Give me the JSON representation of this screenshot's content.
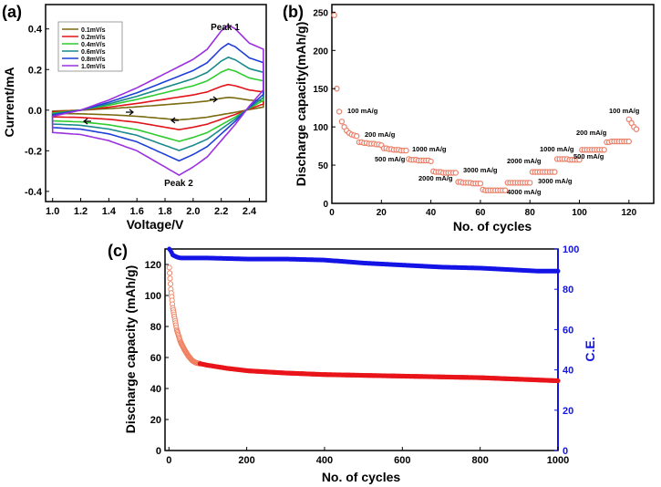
{
  "chart_data": [
    {
      "panel": "(a)",
      "type": "line",
      "title": "",
      "xlabel": "Voltage/V",
      "ylabel": "Current/mA",
      "xlim": [
        0.95,
        2.52
      ],
      "ylim": [
        -0.45,
        0.52
      ],
      "xticks": [
        "1.0",
        "1.2",
        "1.4",
        "1.6",
        "1.8",
        "2.0",
        "2.2",
        "2.4"
      ],
      "yticks": [
        "-0.4",
        "-0.2",
        "0.0",
        "0.2",
        "0.4"
      ],
      "legend_position": "top-left",
      "annotations": [
        "Peak 1",
        "Peak 2"
      ],
      "series": [
        {
          "name": "0.1mV/s",
          "color": "#7a6a10",
          "scale": 0.15
        },
        {
          "name": "0.2mV/s",
          "color": "#e0141a",
          "scale": 0.3
        },
        {
          "name": "0.4mV/s",
          "color": "#2ecc2e",
          "scale": 0.48
        },
        {
          "name": "0.6mV/s",
          "color": "#1a8a8a",
          "scale": 0.62
        },
        {
          "name": "0.8mV/s",
          "color": "#1e3fd8",
          "scale": 0.78
        },
        {
          "name": "1.0mV/s",
          "color": "#9b30e0",
          "scale": 1.0
        }
      ],
      "shape": {
        "anodic": [
          [
            1.0,
            -0.03
          ],
          [
            1.2,
            0.0
          ],
          [
            1.4,
            0.05
          ],
          [
            1.6,
            0.11
          ],
          [
            1.8,
            0.18
          ],
          [
            2.0,
            0.25
          ],
          [
            2.1,
            0.3
          ],
          [
            2.2,
            0.39
          ],
          [
            2.25,
            0.42
          ],
          [
            2.3,
            0.4
          ],
          [
            2.4,
            0.33
          ],
          [
            2.5,
            0.3
          ]
        ],
        "cathodic": [
          [
            2.5,
            0.1
          ],
          [
            2.4,
            0.02
          ],
          [
            2.3,
            -0.07
          ],
          [
            2.2,
            -0.15
          ],
          [
            2.1,
            -0.23
          ],
          [
            2.0,
            -0.28
          ],
          [
            1.9,
            -0.32
          ],
          [
            1.8,
            -0.28
          ],
          [
            1.6,
            -0.2
          ],
          [
            1.4,
            -0.15
          ],
          [
            1.2,
            -0.12
          ],
          [
            1.0,
            -0.11
          ]
        ]
      }
    },
    {
      "panel": "(b)",
      "type": "scatter",
      "title": "",
      "xlabel": "No. of cycles",
      "ylabel": "Discharge capacity(mAh/g)",
      "xlim": [
        0,
        130
      ],
      "ylim": [
        0,
        260
      ],
      "xticks": [
        "0",
        "20",
        "40",
        "60",
        "80",
        "100",
        "120"
      ],
      "yticks": [
        "0",
        "50",
        "100",
        "150",
        "200",
        "250"
      ],
      "marker_color": "#e9806a",
      "segments": [
        {
          "label": "100 mA/g",
          "start": 1,
          "values": [
            246,
            150,
            120,
            107,
            100,
            95,
            92,
            90,
            89,
            88
          ]
        },
        {
          "label": "200 mA/g",
          "start": 11,
          "values": [
            80,
            80,
            79,
            79,
            78,
            78,
            78,
            77,
            77,
            76
          ]
        },
        {
          "label": "500 mA/g",
          "start": 21,
          "values": [
            72,
            72,
            71,
            71,
            70,
            70,
            70,
            69,
            69,
            69
          ]
        },
        {
          "label": "1000 mA/g",
          "start": 31,
          "values": [
            58,
            57,
            57,
            57,
            56,
            56,
            56,
            56,
            56,
            55
          ]
        },
        {
          "label": "2000 mA/g",
          "start": 41,
          "values": [
            42,
            41,
            41,
            41,
            40,
            40,
            40,
            40,
            40,
            40
          ]
        },
        {
          "label": "3000 mA/g",
          "start": 51,
          "values": [
            28,
            28,
            27,
            27,
            27,
            27,
            26,
            26,
            26,
            26
          ]
        },
        {
          "label": "4000 mA/g",
          "start": 61,
          "values": [
            18,
            17,
            17,
            17,
            17,
            17,
            17,
            17,
            17,
            17
          ]
        },
        {
          "label": "3000 mA/g",
          "start": 71,
          "values": [
            27,
            27,
            27,
            27,
            27,
            27,
            27,
            27,
            27,
            27
          ]
        },
        {
          "label": "2000 mA/g",
          "start": 81,
          "values": [
            41,
            41,
            41,
            41,
            41,
            41,
            41,
            41,
            41,
            41
          ]
        },
        {
          "label": "1000 mA/g",
          "start": 91,
          "values": [
            58,
            58,
            58,
            58,
            58,
            57,
            57,
            57,
            57,
            57
          ]
        },
        {
          "label": "500 mA/g",
          "start": 101,
          "values": [
            70,
            70,
            70,
            70,
            70,
            70,
            70,
            70,
            70,
            70
          ]
        },
        {
          "label": "200 mA/g",
          "start": 111,
          "values": [
            80,
            80,
            81,
            81,
            81,
            81,
            81,
            81,
            81,
            81
          ]
        },
        {
          "label": "100 mA/g",
          "start": 120,
          "values": [
            110,
            105,
            100,
            97
          ]
        }
      ]
    },
    {
      "panel": "(c)",
      "type": "scatter",
      "title": "",
      "xlabel": "No. of cycles",
      "ylabel": "Discharge capacity (mAh/g)",
      "y2label": "C.E.",
      "xlim": [
        -10,
        1000
      ],
      "ylim": [
        0,
        130
      ],
      "y2lim": [
        0,
        100
      ],
      "xticks": [
        "0",
        "200",
        "400",
        "600",
        "800",
        "1000"
      ],
      "yticks": [
        "0",
        "20",
        "40",
        "60",
        "80",
        "100",
        "120"
      ],
      "y2ticks": [
        "0",
        "20",
        "40",
        "60",
        "80",
        "100"
      ],
      "capacity_color": "#e8151a",
      "ce_color": "#1414e6",
      "capacity": {
        "x": [
          1,
          5,
          10,
          20,
          30,
          40,
          50,
          60,
          70,
          80,
          100,
          150,
          200,
          300,
          400,
          500,
          600,
          700,
          800,
          900,
          1000
        ],
        "y": [
          118,
          104,
          92,
          78,
          70,
          65,
          61,
          58,
          56.5,
          56,
          55,
          53,
          51.5,
          50,
          49,
          48.5,
          48,
          47.5,
          47,
          46,
          45
        ]
      },
      "coulombic_efficiency": {
        "x": [
          1,
          5,
          10,
          20,
          30,
          50,
          100,
          200,
          300,
          400,
          500,
          600,
          700,
          800,
          900,
          950,
          1000
        ],
        "y": [
          100,
          99,
          97,
          96,
          95.5,
          95.5,
          95.5,
          95,
          95,
          94.5,
          93,
          92,
          91,
          90.5,
          89.5,
          89,
          89
        ]
      }
    }
  ]
}
